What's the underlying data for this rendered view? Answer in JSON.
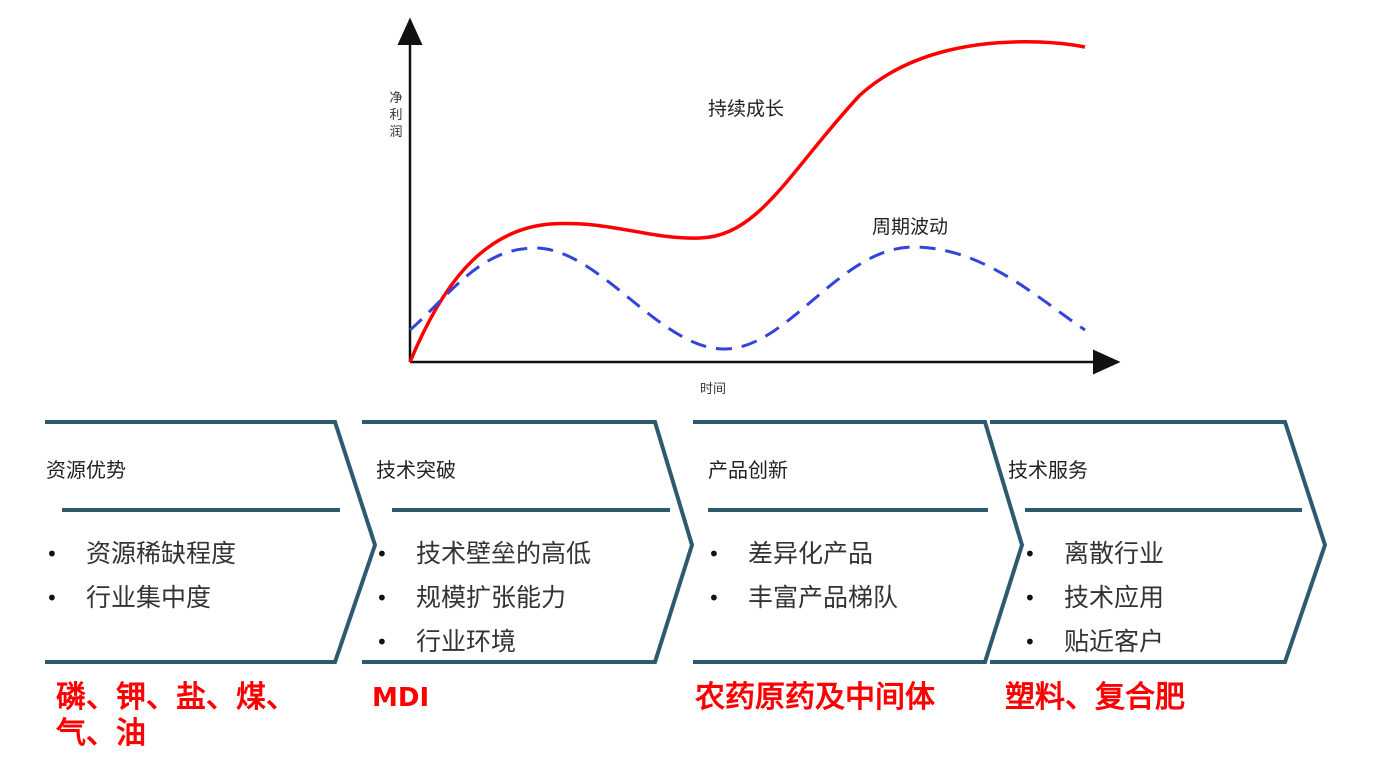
{
  "chart": {
    "y_label": "净利润",
    "x_label": "时间",
    "series_growth_label": "持续成长",
    "series_cycle_label": "周期波动",
    "growth_color": "#ff0000",
    "cycle_color": "#3344dd",
    "axis_color": "#111111"
  },
  "chart_data": {
    "type": "line",
    "title": "",
    "xlabel": "时间",
    "ylabel": "净利润",
    "grid": false,
    "series": [
      {
        "name": "持续成长",
        "style": "solid",
        "color": "#ff0000"
      },
      {
        "name": "周期波动",
        "style": "dashed",
        "color": "#3344dd"
      }
    ]
  },
  "stages": [
    {
      "title": "资源优势",
      "bullets": [
        "资源稀缺程度",
        "行业集中度"
      ],
      "example": "磷、钾、盐、煤、气、油"
    },
    {
      "title": "技术突破",
      "bullets": [
        "技术壁垒的高低",
        "规模扩张能力",
        "行业环境"
      ],
      "example": "MDI"
    },
    {
      "title": "产品创新",
      "bullets": [
        "差异化产品",
        "丰富产品梯队"
      ],
      "example": "农药原药及中间体"
    },
    {
      "title": "技术服务",
      "bullets": [
        "离散行业",
        "技术应用",
        "贴近客户"
      ],
      "example": "塑料、复合肥"
    }
  ],
  "style": {
    "chevron_stroke": "#2e5a6f",
    "example_color": "#ff0000"
  }
}
